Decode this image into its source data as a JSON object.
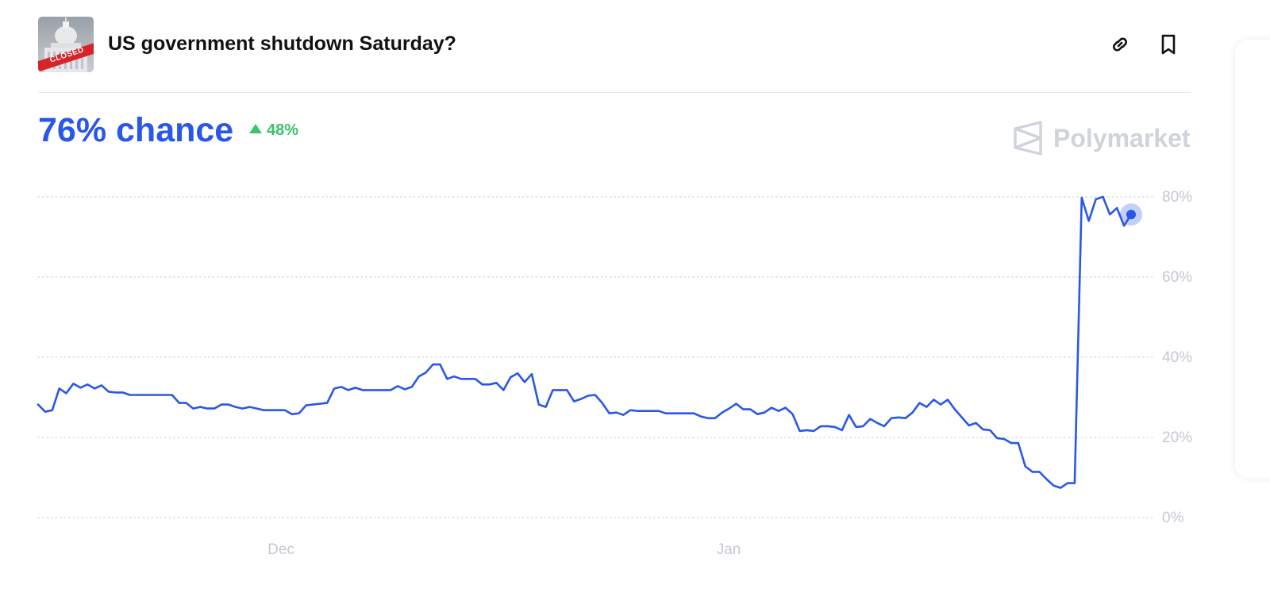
{
  "header": {
    "title": "US government shutdown Saturday?",
    "thumbnail_badge": "CLOSED",
    "link_icon": "link-icon",
    "bookmark_icon": "bookmark-icon"
  },
  "summary": {
    "chance": "76% chance",
    "delta": "48%",
    "delta_icon": "triangle-up-icon",
    "delta_color": "#3cc36b"
  },
  "brand": {
    "name": "Polymarket",
    "logo_icon": "polymarket-logo-icon"
  },
  "colors": {
    "accent": "#2a57e8",
    "grid": "#d9dde3",
    "muted_text": "#c4c9d1",
    "brand_gray": "#cfd4db"
  },
  "chart_data": {
    "type": "line",
    "title": "",
    "xlabel": "",
    "ylabel": "",
    "ylim": [
      0,
      80
    ],
    "y_ticks": [
      "80%",
      "60%",
      "40%",
      "20%",
      "0%"
    ],
    "x_ticks": [
      "Dec",
      "Jan"
    ],
    "grid": true,
    "series": [
      {
        "color": "#2a57e8",
        "values": [
          28.2,
          26.4,
          26.8,
          32.2,
          31.0,
          33.4,
          32.4,
          33.2,
          32.2,
          33.0,
          31.4,
          31.2,
          31.2,
          30.6,
          30.6,
          30.6,
          30.6,
          30.6,
          30.6,
          30.6,
          28.6,
          28.6,
          27.2,
          27.6,
          27.2,
          27.2,
          28.2,
          28.2,
          27.6,
          27.2,
          27.6,
          27.2,
          26.8,
          26.8,
          26.8,
          26.8,
          25.8,
          26.0,
          28.0,
          28.2,
          28.4,
          28.6,
          32.2,
          32.6,
          31.8,
          32.4,
          31.8,
          31.8,
          31.8,
          31.8,
          31.8,
          32.8,
          32.0,
          32.6,
          35.2,
          36.2,
          38.2,
          38.2,
          34.6,
          35.2,
          34.6,
          34.6,
          34.6,
          33.2,
          33.2,
          33.6,
          31.8,
          35.0,
          36.0,
          33.8,
          35.8,
          28.2,
          27.6,
          31.8,
          31.8,
          31.8,
          29.0,
          29.6,
          30.4,
          30.6,
          28.6,
          26.0,
          26.2,
          25.6,
          26.8,
          26.6,
          26.6,
          26.6,
          26.6,
          26.0,
          26.0,
          26.0,
          26.0,
          26.0,
          25.2,
          24.8,
          24.8,
          26.2,
          27.2,
          28.4,
          27.0,
          27.0,
          25.8,
          26.2,
          27.4,
          26.6,
          27.4,
          25.8,
          21.6,
          21.8,
          21.6,
          22.8,
          22.8,
          22.6,
          21.8,
          25.6,
          22.6,
          22.8,
          24.6,
          23.6,
          22.8,
          24.8,
          25.0,
          24.8,
          26.2,
          28.6,
          27.6,
          29.4,
          28.2,
          29.4,
          27.0,
          25.0,
          23.0,
          23.6,
          22.0,
          21.8,
          19.8,
          19.6,
          18.6,
          18.6,
          12.8,
          11.4,
          11.4,
          9.6,
          8.0,
          7.4,
          8.6,
          8.6,
          79.8,
          74.0,
          79.4,
          80.0,
          75.6,
          77.2,
          72.8,
          75.6
        ]
      }
    ]
  }
}
